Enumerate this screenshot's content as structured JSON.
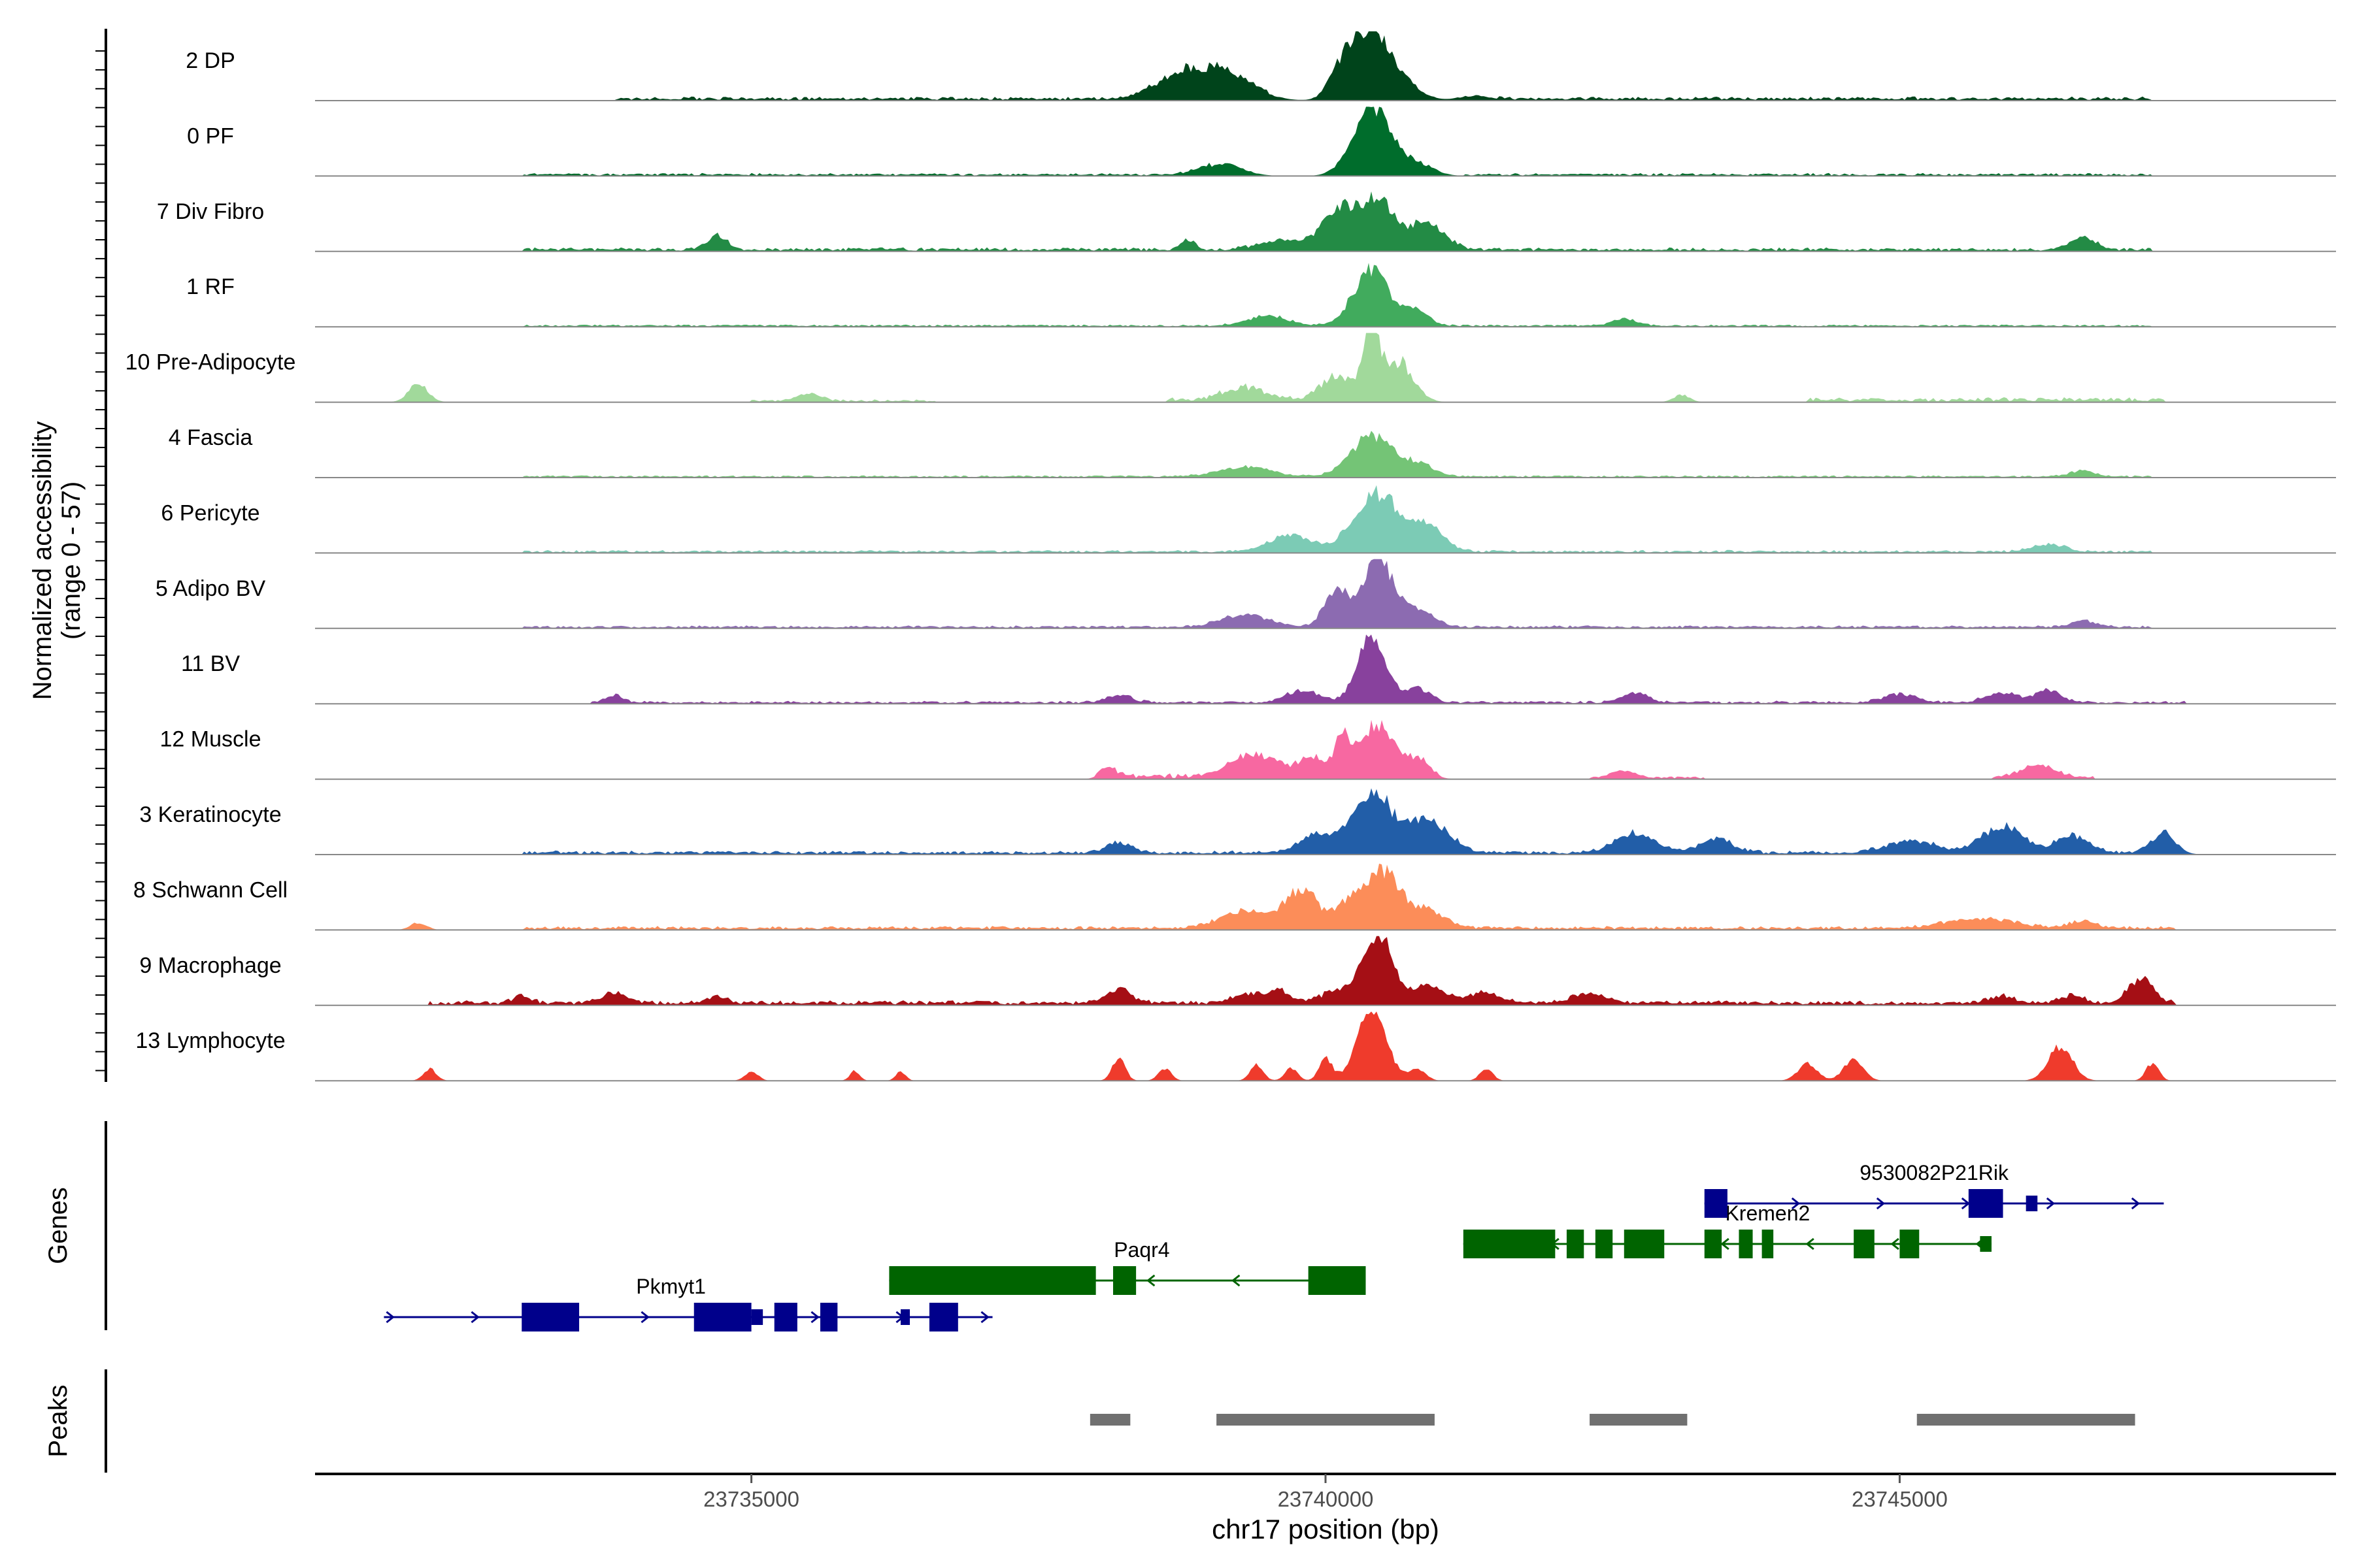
{
  "chart_data": {
    "type": "area",
    "y_axis_label_line1": "Normalized accessibility",
    "y_axis_label_line2": "(range 0 - 57)",
    "ylim": [
      0,
      57
    ],
    "x_axis_label": "chr17 position (bp)",
    "xlim": [
      23731200,
      23748800
    ],
    "x_ticks": [
      23735000,
      23740000,
      23745000
    ],
    "x_tick_labels": [
      "23735000",
      "23740000",
      "23745000"
    ],
    "genes_panel_label": "Genes",
    "peaks_panel_label": "Peaks",
    "tracks": [
      {
        "name": "2 DP",
        "color": "#00441b",
        "peaks": [
          [
            23738700,
            16,
            300
          ],
          [
            23739100,
            22,
            350
          ],
          [
            23740150,
            25,
            160
          ],
          [
            23740400,
            57,
            210
          ],
          [
            23740700,
            12,
            200
          ],
          [
            23741300,
            4,
            200
          ]
        ],
        "noise": [
          [
            23733800,
            23739500,
            2
          ],
          [
            23741500,
            23747200,
            2
          ]
        ]
      },
      {
        "name": "0 PF",
        "color": "#006d2c",
        "peaks": [
          [
            23739100,
            10,
            250
          ],
          [
            23740400,
            57,
            230
          ],
          [
            23740800,
            10,
            200
          ]
        ],
        "noise": [
          [
            23733000,
            23739000,
            1.5
          ],
          [
            23741200,
            23747200,
            1.5
          ]
        ]
      },
      {
        "name": "7 Div Fibro",
        "color": "#238b45",
        "peaks": [
          [
            23734700,
            12,
            120
          ],
          [
            23738800,
            8,
            90
          ],
          [
            23739600,
            8,
            250
          ],
          [
            23740100,
            32,
            200
          ],
          [
            23740450,
            40,
            230
          ],
          [
            23740900,
            22,
            200
          ],
          [
            23746600,
            10,
            150
          ]
        ],
        "noise": [
          [
            23733000,
            23747200,
            2
          ]
        ]
      },
      {
        "name": "1 RF",
        "color": "#41ab5d",
        "peaks": [
          [
            23739500,
            8,
            250
          ],
          [
            23740400,
            45,
            220
          ],
          [
            23740800,
            12,
            150
          ],
          [
            23742600,
            6,
            150
          ]
        ],
        "noise": [
          [
            23733000,
            23747200,
            1.2
          ]
        ]
      },
      {
        "name": "10 Pre-Adipocyte",
        "color": "#a1d99b",
        "peaks": [
          [
            23732100,
            15,
            120
          ],
          [
            23735500,
            6,
            150
          ],
          [
            23739300,
            10,
            250
          ],
          [
            23740100,
            18,
            200
          ],
          [
            23740400,
            57,
            100
          ],
          [
            23740650,
            30,
            180
          ],
          [
            23743100,
            6,
            100
          ]
        ],
        "noise": [
          [
            23735000,
            23736600,
            1.5
          ],
          [
            23738600,
            23740700,
            3
          ],
          [
            23744200,
            23747300,
            2.5
          ]
        ]
      },
      {
        "name": "4 Fascia",
        "color": "#74c476",
        "peaks": [
          [
            23739300,
            8,
            300
          ],
          [
            23740400,
            34,
            250
          ],
          [
            23740800,
            10,
            200
          ],
          [
            23746600,
            5,
            150
          ]
        ],
        "noise": [
          [
            23733000,
            23747200,
            1.2
          ]
        ]
      },
      {
        "name": "6 Pericyte",
        "color": "#7ccbb5",
        "peaks": [
          [
            23739700,
            14,
            250
          ],
          [
            23740450,
            48,
            280
          ],
          [
            23740900,
            18,
            200
          ],
          [
            23746300,
            6,
            200
          ]
        ],
        "noise": [
          [
            23733000,
            23747200,
            1.5
          ]
        ]
      },
      {
        "name": "5 Adipo BV",
        "color": "#8c6bb1",
        "peaks": [
          [
            23739300,
            10,
            300
          ],
          [
            23740100,
            30,
            150
          ],
          [
            23740450,
            57,
            180
          ],
          [
            23740800,
            14,
            200
          ],
          [
            23746600,
            5,
            150
          ]
        ],
        "noise": [
          [
            23733000,
            23747200,
            1.5
          ]
        ]
      },
      {
        "name": "11 BV",
        "color": "#88419d",
        "peaks": [
          [
            23733800,
            6,
            100
          ],
          [
            23738200,
            6,
            150
          ],
          [
            23739800,
            10,
            200
          ],
          [
            23740400,
            57,
            170
          ],
          [
            23740800,
            12,
            150
          ],
          [
            23742700,
            8,
            150
          ],
          [
            23745000,
            7,
            200
          ],
          [
            23745900,
            8,
            200
          ],
          [
            23746300,
            10,
            150
          ]
        ],
        "noise": [
          [
            23733600,
            23747500,
            1.5
          ]
        ]
      },
      {
        "name": "12 Muscle",
        "color": "#f768a1",
        "peaks": [
          [
            23738100,
            8,
            100
          ],
          [
            23739400,
            18,
            300
          ],
          [
            23739900,
            15,
            150
          ],
          [
            23740150,
            30,
            100
          ],
          [
            23740450,
            42,
            200
          ],
          [
            23740800,
            14,
            150
          ],
          [
            23742600,
            6,
            150
          ],
          [
            23746200,
            10,
            200
          ]
        ],
        "noise": [
          [
            23738000,
            23741000,
            3
          ],
          [
            23742300,
            23743300,
            1.5
          ],
          [
            23745800,
            23746700,
            2
          ]
        ]
      },
      {
        "name": "3 Keratinocyte",
        "color": "#225ea8",
        "peaks": [
          [
            23738200,
            8,
            150
          ],
          [
            23739900,
            14,
            200
          ],
          [
            23740400,
            50,
            250
          ],
          [
            23740900,
            26,
            250
          ],
          [
            23742700,
            16,
            250
          ],
          [
            23743400,
            12,
            200
          ],
          [
            23745100,
            10,
            300
          ],
          [
            23745900,
            22,
            250
          ],
          [
            23746500,
            14,
            200
          ],
          [
            23747300,
            16,
            150
          ]
        ],
        "noise": [
          [
            23733000,
            23747400,
            2
          ]
        ]
      },
      {
        "name": "8 Schwann Cell",
        "color": "#fc8d59",
        "peaks": [
          [
            23732100,
            6,
            100
          ],
          [
            23739300,
            14,
            300
          ],
          [
            23739800,
            32,
            200
          ],
          [
            23740200,
            18,
            150
          ],
          [
            23740500,
            46,
            220
          ],
          [
            23740900,
            14,
            200
          ],
          [
            23745700,
            8,
            400
          ],
          [
            23746600,
            6,
            150
          ]
        ],
        "noise": [
          [
            23733000,
            23747400,
            2
          ]
        ]
      },
      {
        "name": "9 Macrophage",
        "color": "#a50f15",
        "peaks": [
          [
            23733000,
            6,
            100
          ],
          [
            23733800,
            8,
            150
          ],
          [
            23734700,
            6,
            100
          ],
          [
            23738200,
            12,
            150
          ],
          [
            23739300,
            8,
            150
          ],
          [
            23739600,
            10,
            150
          ],
          [
            23740100,
            10,
            200
          ],
          [
            23740450,
            57,
            180
          ],
          [
            23740900,
            16,
            200
          ],
          [
            23741400,
            8,
            200
          ],
          [
            23742300,
            8,
            200
          ],
          [
            23745900,
            6,
            150
          ],
          [
            23746500,
            6,
            150
          ],
          [
            23747100,
            20,
            150
          ]
        ],
        "noise": [
          [
            23732200,
            23747400,
            2.5
          ]
        ]
      },
      {
        "name": "13 Lymphocyte",
        "color": "#ef3b2c",
        "peaks": [
          [
            23732200,
            10,
            80
          ],
          [
            23735000,
            8,
            80
          ],
          [
            23735900,
            8,
            60
          ],
          [
            23736300,
            8,
            60
          ],
          [
            23738200,
            18,
            80
          ],
          [
            23738600,
            10,
            80
          ],
          [
            23739400,
            14,
            80
          ],
          [
            23739700,
            10,
            80
          ],
          [
            23740000,
            18,
            80
          ],
          [
            23740400,
            57,
            180
          ],
          [
            23740800,
            10,
            100
          ],
          [
            23741400,
            10,
            80
          ],
          [
            23744200,
            14,
            120
          ],
          [
            23744600,
            18,
            120
          ],
          [
            23746400,
            28,
            150
          ],
          [
            23747200,
            14,
            80
          ]
        ],
        "noise": []
      }
    ],
    "genes": [
      {
        "name": "Pkmyt1",
        "strand": "+",
        "row": 0,
        "color": "#00008b",
        "start": 23731800,
        "end": 23737100,
        "exons": [
          [
            23733000,
            23733500,
            "thick"
          ],
          [
            23734500,
            23735000,
            "thick"
          ],
          [
            23735000,
            23735100,
            "thin"
          ],
          [
            23735200,
            23735400,
            "thick"
          ],
          [
            23735600,
            23735750,
            "thick"
          ],
          [
            23736300,
            23736380,
            "thin"
          ],
          [
            23736550,
            23736800,
            "thick"
          ]
        ],
        "label_x": 23734300
      },
      {
        "name": "Paqr4",
        "strand": "-",
        "row": 1,
        "color": "#006400",
        "start": 23736200,
        "end": 23740350,
        "exons": [
          [
            23736200,
            23738000,
            "thick"
          ],
          [
            23738150,
            23738350,
            "thick"
          ],
          [
            23739850,
            23740350,
            "thick"
          ]
        ],
        "label_x": 23738400
      },
      {
        "name": "Kremen2",
        "strand": "-",
        "row": 2,
        "color": "#006400",
        "start": 23741200,
        "end": 23745800,
        "exons": [
          [
            23741200,
            23742000,
            "thick"
          ],
          [
            23742100,
            23742250,
            "thick"
          ],
          [
            23742350,
            23742500,
            "thick"
          ],
          [
            23742600,
            23742950,
            "thick"
          ],
          [
            23743300,
            23743450,
            "thick"
          ],
          [
            23743600,
            23743720,
            "thick"
          ],
          [
            23743800,
            23743900,
            "thick"
          ],
          [
            23744600,
            23744780,
            "thick"
          ],
          [
            23745000,
            23745170,
            "thick"
          ],
          [
            23745700,
            23745800,
            "thin"
          ]
        ],
        "label_x": 23743850
      },
      {
        "name": "9530082P21Rik",
        "strand": "+",
        "row": 3,
        "color": "#00008b",
        "start": 23743300,
        "end": 23747300,
        "exons": [
          [
            23743300,
            23743500,
            "thick"
          ],
          [
            23745600,
            23745900,
            "thick"
          ],
          [
            23746100,
            23746200,
            "thin"
          ]
        ],
        "label_x": 23745300
      }
    ],
    "peaks": [
      {
        "start": 23737950,
        "end": 23738300
      },
      {
        "start": 23739050,
        "end": 23740950
      },
      {
        "start": 23742300,
        "end": 23743150
      },
      {
        "start": 23745150,
        "end": 23747050
      }
    ]
  }
}
